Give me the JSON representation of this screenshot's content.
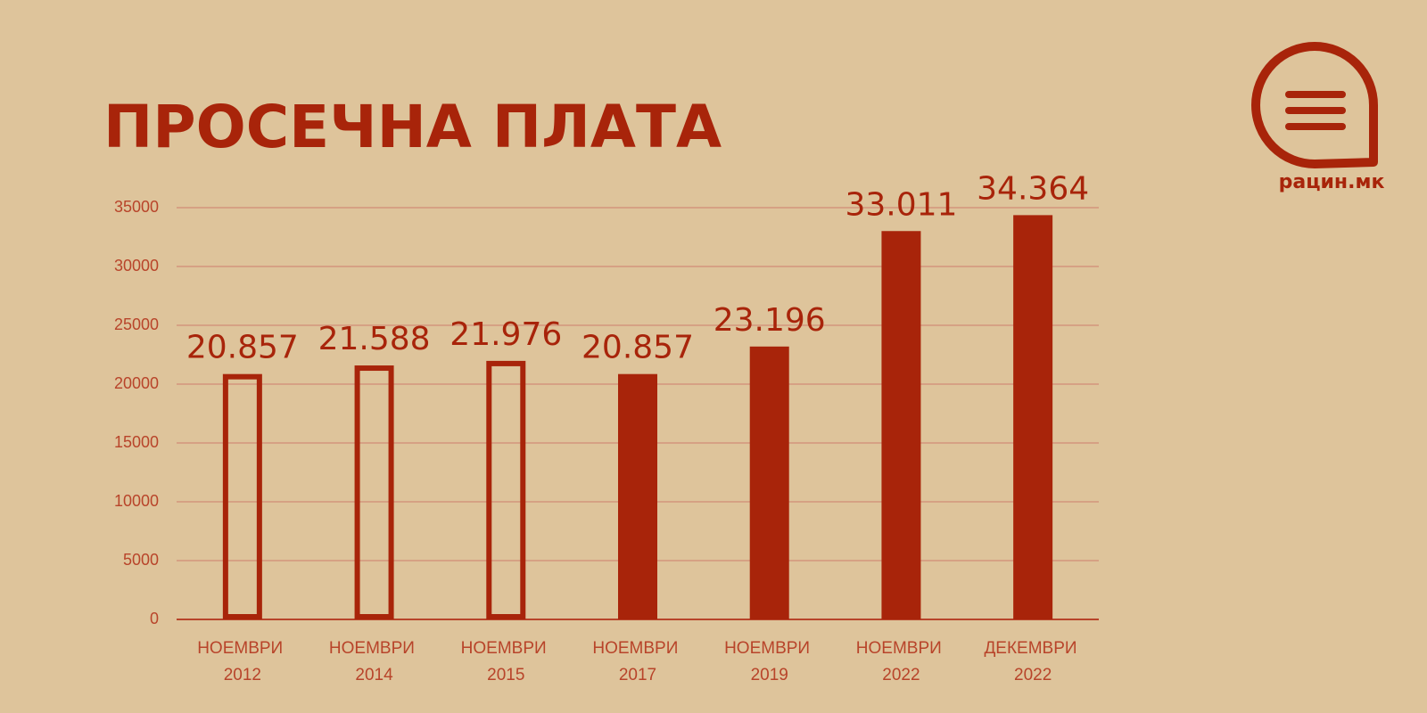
{
  "chart_data": {
    "type": "bar",
    "title": "ПРОСЕЧНА ПЛАТА",
    "brand": "рацин.мк",
    "categories": [
      "НОЕМВРИ 2012",
      "НОЕМВРИ 2014",
      "НОЕМВРИ 2015",
      "НОЕМВРИ 2017",
      "НОЕМВРИ 2019",
      "НОЕМВРИ 2022",
      "ДЕКЕМВРИ 2022"
    ],
    "values": [
      20857,
      21588,
      21976,
      20857,
      23196,
      33011,
      34364
    ],
    "value_labels": [
      "20.857",
      "21.588",
      "21.976",
      "20.857",
      "23.196",
      "33.011",
      "34.364"
    ],
    "hollow": [
      true,
      true,
      true,
      false,
      false,
      false,
      false
    ],
    "color": "#a8240a",
    "ylim": [
      0,
      35000
    ],
    "yticks": [
      0,
      5000,
      10000,
      15000,
      20000,
      25000,
      30000,
      35000
    ],
    "grid": true
  }
}
